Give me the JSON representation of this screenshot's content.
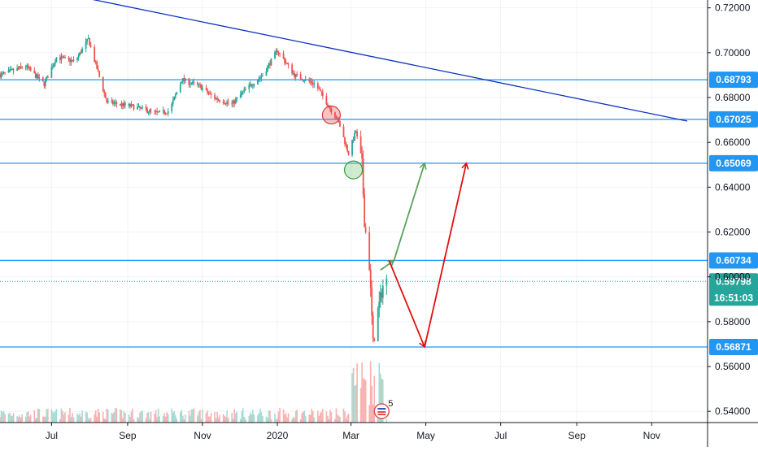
{
  "chart_data": {
    "type": "candlestick",
    "x_labels": [
      "Jul",
      "Sep",
      "Nov",
      "2020",
      "Mar",
      "May",
      "Jul",
      "Sep",
      "Nov"
    ],
    "x_label_dates": [
      "2019-07",
      "2019-09",
      "2019-11",
      "2020-01",
      "2020-03",
      "2020-05",
      "2020-07",
      "2020-09",
      "2020-11"
    ],
    "y_ticks": [
      "0.72000",
      "0.70000",
      "0.68000",
      "0.66000",
      "0.64000",
      "0.62000",
      "0.60000",
      "0.58000",
      "0.56000",
      "0.54000"
    ],
    "ylim": [
      0.535,
      0.7235
    ],
    "date_range": [
      "2019-05-20",
      "2020-11-30"
    ],
    "price_summary": {
      "open": 0.688,
      "high_2020_jan": 0.702,
      "low_2020_mar": 0.5687,
      "last": 0.59798,
      "path": [
        [
          "2019-05-20",
          0.69
        ],
        [
          "2019-06-10",
          0.694
        ],
        [
          "2019-06-25",
          0.686
        ],
        [
          "2019-07-05",
          0.698
        ],
        [
          "2019-07-20",
          0.696
        ],
        [
          "2019-07-31",
          0.706
        ],
        [
          "2019-08-15",
          0.678
        ],
        [
          "2019-09-05",
          0.676
        ],
        [
          "2019-09-25",
          0.673
        ],
        [
          "2019-10-05",
          0.674
        ],
        [
          "2019-10-15",
          0.688
        ],
        [
          "2019-10-30",
          0.685
        ],
        [
          "2019-11-10",
          0.68
        ],
        [
          "2019-11-25",
          0.677
        ],
        [
          "2019-12-05",
          0.683
        ],
        [
          "2019-12-20",
          0.69
        ],
        [
          "2020-01-01",
          0.701
        ],
        [
          "2020-01-15",
          0.69
        ],
        [
          "2020-02-01",
          0.686
        ],
        [
          "2020-02-20",
          0.669
        ],
        [
          "2020-02-28",
          0.655
        ],
        [
          "2020-03-05",
          0.665
        ],
        [
          "2020-03-10",
          0.65
        ],
        [
          "2020-03-12",
          0.625
        ],
        [
          "2020-03-16",
          0.605
        ],
        [
          "2020-03-19",
          0.57
        ],
        [
          "2020-03-23",
          0.585
        ],
        [
          "2020-03-27",
          0.596
        ],
        [
          "2020-03-30",
          0.598
        ]
      ]
    },
    "horizontal_levels": [
      {
        "value": 0.68793,
        "label": "0.68793"
      },
      {
        "value": 0.67025,
        "label": "0.67025"
      },
      {
        "value": 0.65069,
        "label": "0.65069"
      },
      {
        "value": 0.60734,
        "label": "0.60734"
      },
      {
        "value": 0.56871,
        "label": "0.56871"
      }
    ],
    "last_price": {
      "value": 0.59798,
      "label": "0.59798",
      "countdown": "16:51:03"
    },
    "trendline": {
      "start": [
        "2019-08-01",
        0.724
      ],
      "end": [
        "2020-11-30",
        0.6695
      ]
    },
    "projections": [
      {
        "color": "green",
        "points": [
          [
            "2020-03-25",
            0.603
          ],
          [
            "2020-04-05",
            0.6073
          ],
          [
            "2020-04-30",
            0.6507
          ]
        ]
      },
      {
        "color": "red",
        "points": [
          [
            "2020-04-01",
            0.6073
          ],
          [
            "2020-04-30",
            0.5687
          ],
          [
            "2020-06-03",
            0.6507
          ]
        ]
      }
    ],
    "markers": [
      {
        "color": "red",
        "date": "2020-02-14",
        "value": 0.6722
      },
      {
        "color": "green",
        "date": "2020-03-03",
        "value": 0.6477
      }
    ],
    "event_badge": {
      "text": "5",
      "date": "2020-03-26"
    },
    "colors": {
      "up": "#26a69a",
      "down": "#ef5350",
      "level": "#2196f3",
      "trendline": "#0d31c2",
      "last": "#26a69a"
    }
  }
}
